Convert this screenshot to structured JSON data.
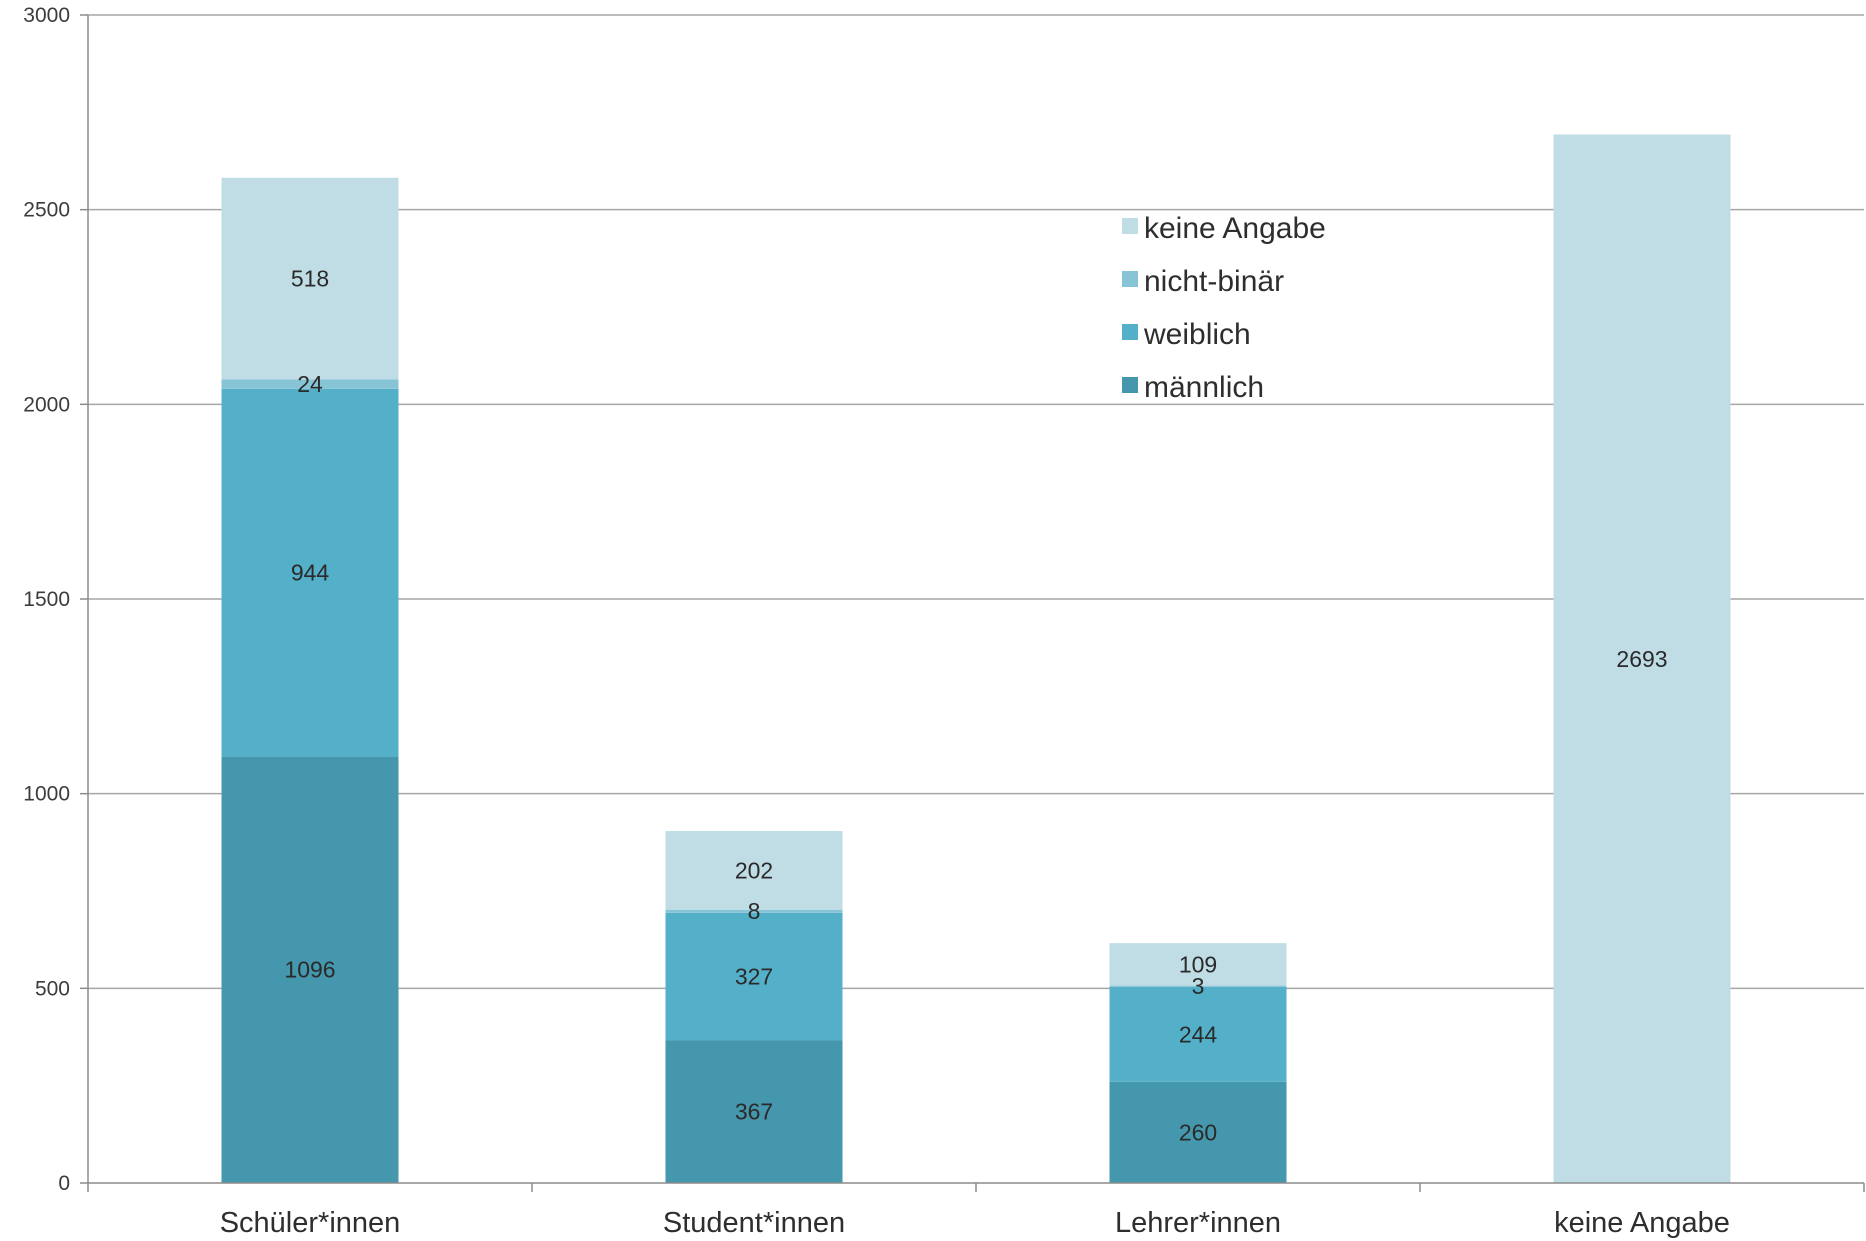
{
  "chart_data": {
    "type": "bar",
    "stacked": true,
    "categories": [
      "Schüler*innen",
      "Student*innen",
      "Lehrer*innen",
      "keine Angabe"
    ],
    "series": [
      {
        "name": "männlich",
        "color": "#4597AD",
        "values": [
          1096,
          367,
          260,
          null
        ]
      },
      {
        "name": "weiblich",
        "color": "#54B0C8",
        "values": [
          944,
          327,
          244,
          null
        ]
      },
      {
        "name": "nicht-binär",
        "color": "#86C4D6",
        "values": [
          24,
          8,
          3,
          null
        ]
      },
      {
        "name": "keine Angabe",
        "color": "#C0DDE6",
        "values": [
          518,
          202,
          109,
          2693
        ]
      }
    ],
    "ylim": [
      0,
      3000
    ],
    "yticks": [
      "0",
      "500",
      "1000",
      "1500",
      "2000",
      "2500",
      "3000"
    ],
    "grid": true,
    "legend_position": "top-center",
    "legend_order": [
      "keine Angabe",
      "nicht-binär",
      "weiblich",
      "männlich"
    ]
  }
}
